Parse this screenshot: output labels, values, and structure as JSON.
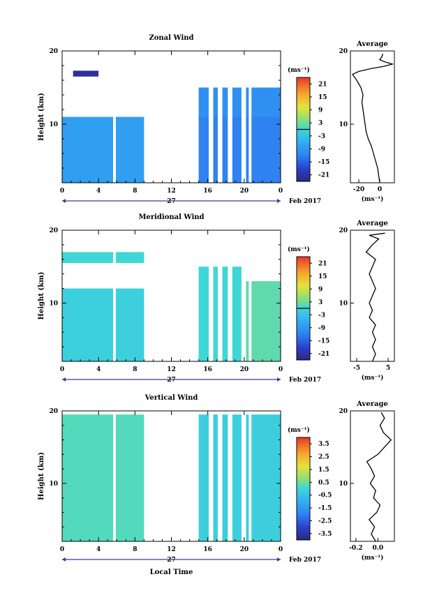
{
  "chart_data": [
    {
      "type": "heatmap",
      "title": "Zonal Wind",
      "ylabel": "Height (km)",
      "xlabel": "",
      "xlim": [
        0,
        24
      ],
      "ylim": [
        2,
        20
      ],
      "x_ticks": [
        "0",
        "4",
        "8",
        "12",
        "16",
        "20",
        "0"
      ],
      "y_ticks": [
        "10",
        "20"
      ],
      "date_day": "27",
      "date_label": "Feb 2017",
      "colorbar": {
        "unit": "(ms⁻¹)",
        "ticks": [
          "21",
          "15",
          "9",
          "3",
          "-3",
          "-9",
          "-15",
          "-21"
        ],
        "range": [
          -24,
          24
        ]
      },
      "blocks": [
        {
          "x0": 0,
          "x1": 9,
          "y0": 2,
          "y1": 11,
          "value": -8
        },
        {
          "x0": 15,
          "x1": 24,
          "y0": 2,
          "y1": 11,
          "value": -12
        },
        {
          "x0": 15,
          "x1": 24,
          "y0": 11,
          "y1": 15,
          "value": -10
        },
        {
          "x0": 1.2,
          "x1": 4,
          "y0": 16.5,
          "y1": 17.3,
          "value": -22
        }
      ],
      "gaps": [
        [
          5.6,
          5.9
        ],
        [
          16.1,
          16.6
        ],
        [
          17.1,
          17.6
        ],
        [
          18.2,
          18.7
        ],
        [
          19.7,
          20.2
        ],
        [
          20.5,
          20.8
        ]
      ],
      "profile": {
        "title": "Average",
        "xlim": [
          -28,
          14
        ],
        "x_ticks": [
          "-20",
          "0"
        ],
        "xlabel": "(ms⁻¹)",
        "y_ticks": [
          "10",
          "20"
        ],
        "points": [
          [
            0,
            2
          ],
          [
            -1,
            3
          ],
          [
            -2,
            4
          ],
          [
            -4,
            5
          ],
          [
            -6,
            6
          ],
          [
            -8,
            7
          ],
          [
            -11,
            8
          ],
          [
            -13,
            9
          ],
          [
            -14,
            10
          ],
          [
            -15,
            11
          ],
          [
            -16,
            12
          ],
          [
            -17,
            13
          ],
          [
            -16,
            14
          ],
          [
            -18,
            15
          ],
          [
            -22,
            16
          ],
          [
            -26,
            16.8
          ],
          [
            -20,
            17.2
          ],
          [
            -8,
            17.6
          ],
          [
            4,
            17.9
          ],
          [
            12,
            18.2
          ],
          [
            5,
            18.5
          ],
          [
            0,
            18.8
          ],
          [
            2,
            19.2
          ],
          [
            3,
            19.6
          ]
        ]
      }
    },
    {
      "type": "heatmap",
      "title": "Meridional Wind",
      "ylabel": "Height (km)",
      "xlabel": "",
      "xlim": [
        0,
        24
      ],
      "ylim": [
        2,
        20
      ],
      "x_ticks": [
        "0",
        "4",
        "8",
        "12",
        "16",
        "20",
        "0"
      ],
      "y_ticks": [
        "10",
        "20"
      ],
      "date_day": "27",
      "date_label": "Feb 2017",
      "colorbar": {
        "unit": "(ms⁻¹)",
        "ticks": [
          "21",
          "15",
          "9",
          "3",
          "-3",
          "-9",
          "-15",
          "-21"
        ],
        "range": [
          -24,
          24
        ]
      },
      "blocks": [
        {
          "x0": 0,
          "x1": 9,
          "y0": 2,
          "y1": 12,
          "value": -1
        },
        {
          "x0": 15,
          "x1": 20,
          "y0": 2,
          "y1": 15,
          "value": 0
        },
        {
          "x0": 20,
          "x1": 24,
          "y0": 2,
          "y1": 13,
          "value": 2
        },
        {
          "x0": 0,
          "x1": 9,
          "y0": 15.5,
          "y1": 17,
          "value": 0
        }
      ],
      "gaps": [
        [
          5.6,
          5.9
        ],
        [
          16.1,
          16.6
        ],
        [
          17.1,
          17.6
        ],
        [
          18.2,
          18.7
        ],
        [
          19.7,
          20.2
        ],
        [
          20.5,
          20.8
        ]
      ],
      "profile": {
        "title": "Average",
        "xlim": [
          -7,
          7
        ],
        "x_ticks": [
          "-5",
          "5"
        ],
        "xlabel": "(ms⁻¹)",
        "y_ticks": [
          "10",
          "20"
        ],
        "points": [
          [
            0,
            2
          ],
          [
            1,
            3
          ],
          [
            0,
            4
          ],
          [
            1,
            5
          ],
          [
            0,
            6
          ],
          [
            1,
            7
          ],
          [
            -1,
            8
          ],
          [
            0,
            9
          ],
          [
            -1,
            10
          ],
          [
            0,
            11
          ],
          [
            1,
            12
          ],
          [
            0,
            13
          ],
          [
            -1,
            14
          ],
          [
            0,
            15
          ],
          [
            1,
            16
          ],
          [
            -2,
            17
          ],
          [
            0,
            18
          ],
          [
            2,
            18.8
          ],
          [
            -1,
            19.3
          ],
          [
            4,
            19.6
          ]
        ]
      }
    },
    {
      "type": "heatmap",
      "title": "Vertical Wind",
      "ylabel": "Height (km)",
      "xlabel": "Local Time",
      "xlim": [
        0,
        24
      ],
      "ylim": [
        2,
        20
      ],
      "x_ticks": [
        "0",
        "4",
        "8",
        "12",
        "16",
        "20",
        "0"
      ],
      "y_ticks": [
        "10",
        "20"
      ],
      "date_day": "27",
      "date_label": "Feb 2017",
      "colorbar": {
        "unit": "(ms⁻¹)",
        "ticks": [
          "3.5",
          "2.5",
          "1.5",
          "0.5",
          "-0.5",
          "-1.5",
          "-2.5",
          "-3.5"
        ],
        "range": [
          -4,
          4
        ]
      },
      "blocks": [
        {
          "x0": 0,
          "x1": 9,
          "y0": 2,
          "y1": 19.5,
          "value": 0.2
        },
        {
          "x0": 15,
          "x1": 24,
          "y0": 2,
          "y1": 19.5,
          "value": -0.2
        }
      ],
      "gaps": [
        [
          5.6,
          5.9
        ],
        [
          16.1,
          16.6
        ],
        [
          17.1,
          17.6
        ],
        [
          18.2,
          18.7
        ],
        [
          19.7,
          20.2
        ],
        [
          20.5,
          20.8
        ]
      ],
      "profile": {
        "title": "Average",
        "xlim": [
          -0.25,
          0.15
        ],
        "x_ticks": [
          "-0.2",
          "0.0"
        ],
        "xlabel": "(ms⁻¹)",
        "y_ticks": [
          "10",
          "20"
        ],
        "points": [
          [
            -0.02,
            2
          ],
          [
            -0.06,
            3
          ],
          [
            -0.03,
            4
          ],
          [
            -0.08,
            5
          ],
          [
            -0.01,
            6
          ],
          [
            0.02,
            7
          ],
          [
            -0.04,
            8
          ],
          [
            -0.02,
            9
          ],
          [
            -0.07,
            10
          ],
          [
            -0.03,
            11
          ],
          [
            -0.06,
            12
          ],
          [
            -0.1,
            13
          ],
          [
            0.0,
            14
          ],
          [
            0.06,
            15
          ],
          [
            0.12,
            16
          ],
          [
            0.05,
            17
          ],
          [
            0.02,
            18
          ],
          [
            0.06,
            19
          ],
          [
            0.03,
            19.8
          ]
        ]
      }
    }
  ]
}
